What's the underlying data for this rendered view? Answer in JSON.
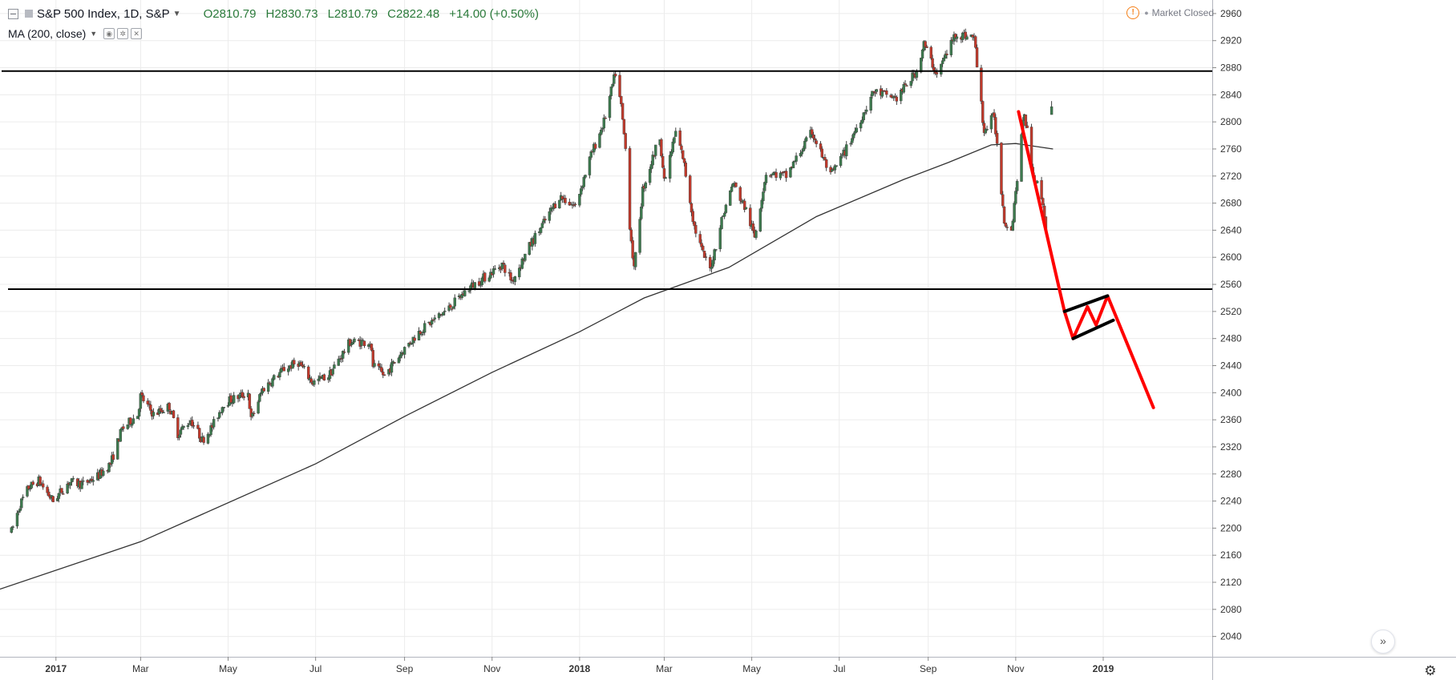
{
  "legend": {
    "symbol": "S&P 500 Index, 1D, S&P",
    "open_label": "O",
    "open": "2810.79",
    "high_label": "H",
    "high": "2830.73",
    "low_label": "L",
    "low": "2810.79",
    "close_label": "C",
    "close": "2822.48",
    "change": "+14.00 (+0.50%)"
  },
  "indicator": {
    "label": "MA (200, close)"
  },
  "status": {
    "text": "Market Closed"
  },
  "icons": {
    "collapse": "collapse-icon",
    "chevron": "chevron-down-icon",
    "warning": "warning-icon",
    "scroll": "scroll-to-latest-icon",
    "settings": "gear-icon"
  },
  "colors": {
    "up": "#3d7a4e",
    "down": "#c0392b",
    "wick": "#404040",
    "ma": "#333333",
    "drawing": "#ff0000",
    "level": "#000000",
    "grid": "#ececec",
    "axis_text": "#333333"
  },
  "chart_data": {
    "type": "candlestick",
    "x_axis": {
      "labels": [
        "2017",
        "Mar",
        "May",
        "Jul",
        "Sep",
        "Nov",
        "2018",
        "Mar",
        "May",
        "Jul",
        "Sep",
        "Nov",
        "2019"
      ],
      "dates": [
        "2017-01-01",
        "2017-03-01",
        "2017-05-01",
        "2017-07-01",
        "2017-09-01",
        "2017-11-01",
        "2018-01-01",
        "2018-03-01",
        "2018-05-01",
        "2018-07-01",
        "2018-09-01",
        "2018-11-01",
        "2019-01-01"
      ],
      "range": [
        "2016-11-23",
        "2019-03-18"
      ]
    },
    "y_axis": {
      "ticks": [
        2040,
        2080,
        2120,
        2160,
        2200,
        2240,
        2280,
        2320,
        2360,
        2400,
        2440,
        2480,
        2520,
        2560,
        2600,
        2640,
        2680,
        2720,
        2760,
        2800,
        2840,
        2880,
        2920,
        2960
      ],
      "range": [
        2010,
        2980
      ],
      "position": "right"
    },
    "grid": true,
    "price_path": [
      [
        "2016-12-01",
        2195
      ],
      [
        "2016-12-07",
        2235
      ],
      [
        "2016-12-13",
        2260
      ],
      [
        "2016-12-20",
        2270
      ],
      [
        "2016-12-30",
        2240
      ],
      [
        "2017-01-10",
        2268
      ],
      [
        "2017-01-20",
        2265
      ],
      [
        "2017-01-31",
        2278
      ],
      [
        "2017-02-08",
        2295
      ],
      [
        "2017-02-16",
        2346
      ],
      [
        "2017-02-27",
        2368
      ],
      [
        "2017-03-01",
        2395
      ],
      [
        "2017-03-10",
        2368
      ],
      [
        "2017-03-21",
        2380
      ],
      [
        "2017-03-27",
        2340
      ],
      [
        "2017-04-05",
        2360
      ],
      [
        "2017-04-13",
        2330
      ],
      [
        "2017-04-20",
        2350
      ],
      [
        "2017-04-28",
        2385
      ],
      [
        "2017-05-15",
        2400
      ],
      [
        "2017-05-17",
        2360
      ],
      [
        "2017-05-25",
        2405
      ],
      [
        "2017-06-09",
        2435
      ],
      [
        "2017-06-19",
        2445
      ],
      [
        "2017-06-29",
        2415
      ],
      [
        "2017-07-10",
        2425
      ],
      [
        "2017-07-25",
        2475
      ],
      [
        "2017-08-08",
        2475
      ],
      [
        "2017-08-10",
        2440
      ],
      [
        "2017-08-18",
        2425
      ],
      [
        "2017-08-30",
        2460
      ],
      [
        "2017-09-11",
        2490
      ],
      [
        "2017-09-20",
        2505
      ],
      [
        "2017-10-02",
        2525
      ],
      [
        "2017-10-16",
        2555
      ],
      [
        "2017-10-30",
        2575
      ],
      [
        "2017-11-08",
        2590
      ],
      [
        "2017-11-15",
        2565
      ],
      [
        "2017-11-28",
        2620
      ],
      [
        "2017-12-04",
        2640
      ],
      [
        "2017-12-18",
        2690
      ],
      [
        "2017-12-29",
        2675
      ],
      [
        "2018-01-08",
        2745
      ],
      [
        "2018-01-18",
        2800
      ],
      [
        "2018-01-26",
        2872
      ],
      [
        "2018-01-30",
        2822
      ],
      [
        "2018-02-02",
        2760
      ],
      [
        "2018-02-05",
        2648
      ],
      [
        "2018-02-08",
        2581
      ],
      [
        "2018-02-14",
        2700
      ],
      [
        "2018-02-26",
        2780
      ],
      [
        "2018-03-01",
        2710
      ],
      [
        "2018-03-09",
        2785
      ],
      [
        "2018-03-14",
        2748
      ],
      [
        "2018-03-22",
        2645
      ],
      [
        "2018-03-28",
        2605
      ],
      [
        "2018-04-02",
        2582
      ],
      [
        "2018-04-10",
        2655
      ],
      [
        "2018-04-18",
        2710
      ],
      [
        "2018-04-27",
        2670
      ],
      [
        "2018-05-03",
        2630
      ],
      [
        "2018-05-11",
        2725
      ],
      [
        "2018-05-25",
        2720
      ],
      [
        "2018-06-12",
        2785
      ],
      [
        "2018-06-25",
        2720
      ],
      [
        "2018-07-06",
        2760
      ],
      [
        "2018-07-25",
        2845
      ],
      [
        "2018-08-10",
        2835
      ],
      [
        "2018-08-24",
        2875
      ],
      [
        "2018-08-29",
        2915
      ],
      [
        "2018-09-07",
        2870
      ],
      [
        "2018-09-20",
        2930
      ],
      [
        "2018-10-03",
        2925
      ],
      [
        "2018-10-10",
        2785
      ],
      [
        "2018-10-17",
        2810
      ],
      [
        "2018-10-24",
        2655
      ],
      [
        "2018-10-29",
        2640
      ],
      [
        "2018-11-07",
        2815
      ],
      [
        "2018-11-13",
        2725
      ],
      [
        "2018-11-19",
        2690
      ],
      [
        "2018-11-23",
        2632
      ]
    ],
    "last_candle": {
      "date": "2018-11-26",
      "open": 2810.79,
      "high": 2830.73,
      "low": 2810.79,
      "close": 2822.48
    },
    "moving_average": {
      "name": "MA (200, close)",
      "points": [
        [
          "2016-11-23",
          2110
        ],
        [
          "2017-03-01",
          2180
        ],
        [
          "2017-07-01",
          2295
        ],
        [
          "2017-09-01",
          2365
        ],
        [
          "2017-11-01",
          2430
        ],
        [
          "2018-01-01",
          2490
        ],
        [
          "2018-02-15",
          2540
        ],
        [
          "2018-04-15",
          2585
        ],
        [
          "2018-06-15",
          2660
        ],
        [
          "2018-08-15",
          2715
        ],
        [
          "2018-09-15",
          2740
        ],
        [
          "2018-10-15",
          2766
        ],
        [
          "2018-11-01",
          2768
        ],
        [
          "2018-11-27",
          2760
        ]
      ]
    },
    "horizontal_levels": [
      2875,
      2553
    ],
    "projection": [
      [
        "2018-11-03",
        2815
      ],
      [
        "2018-12-05",
        2520
      ],
      [
        "2018-12-11",
        2480
      ],
      [
        "2018-12-21",
        2527
      ],
      [
        "2018-12-27",
        2500
      ],
      [
        "2019-01-04",
        2543
      ],
      [
        "2019-02-05",
        2378
      ]
    ],
    "channel": [
      [
        [
          "2018-12-05",
          2520
        ],
        [
          "2019-01-04",
          2543
        ]
      ],
      [
        [
          "2018-12-11",
          2480
        ],
        [
          "2019-01-08",
          2507
        ]
      ]
    ]
  }
}
